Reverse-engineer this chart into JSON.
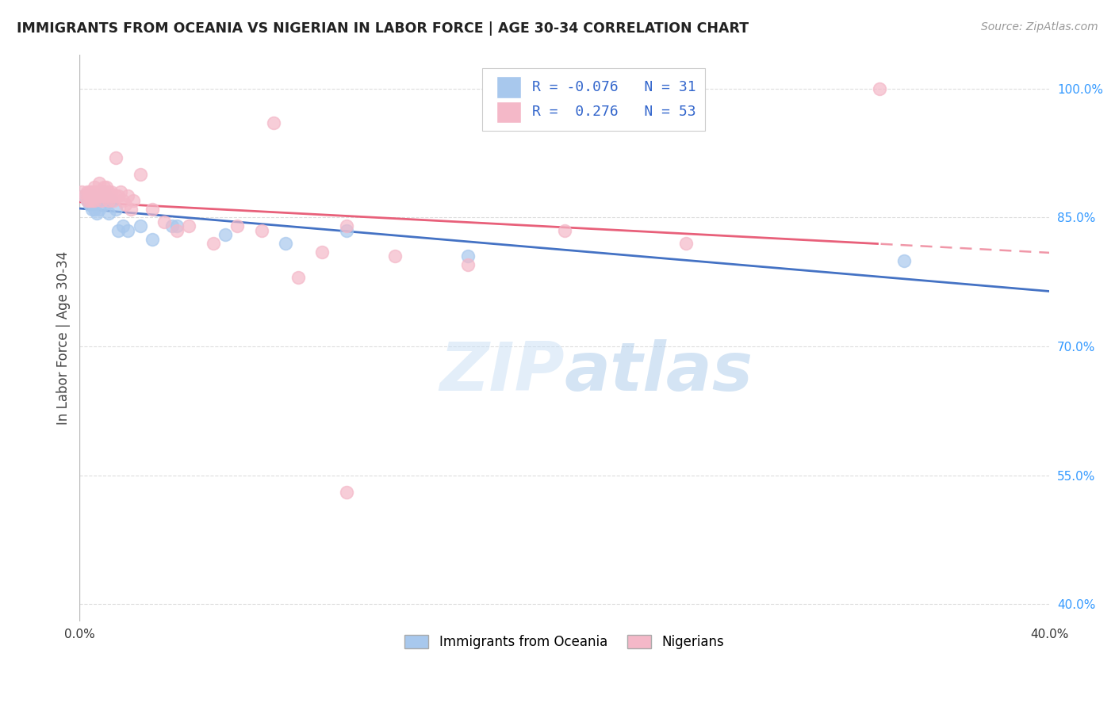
{
  "title": "IMMIGRANTS FROM OCEANIA VS NIGERIAN IN LABOR FORCE | AGE 30-34 CORRELATION CHART",
  "source": "Source: ZipAtlas.com",
  "ylabel": "In Labor Force | Age 30-34",
  "xlim": [
    0.0,
    0.4
  ],
  "ylim": [
    0.38,
    1.04
  ],
  "xticks": [
    0.0,
    0.05,
    0.1,
    0.15,
    0.2,
    0.25,
    0.3,
    0.35,
    0.4
  ],
  "xticklabels": [
    "0.0%",
    "",
    "",
    "",
    "",
    "",
    "",
    "",
    "40.0%"
  ],
  "yticks_right": [
    0.4,
    0.55,
    0.7,
    0.85,
    1.0
  ],
  "yticklabels_right": [
    "40.0%",
    "55.0%",
    "70.0%",
    "85.0%",
    "100.0%"
  ],
  "legend_blue_label": "Immigrants from Oceania",
  "legend_pink_label": "Nigerians",
  "R_blue": -0.076,
  "N_blue": 31,
  "R_pink": 0.276,
  "N_pink": 53,
  "blue_color": "#a8c8ed",
  "pink_color": "#f4b8c8",
  "blue_line_color": "#4472c4",
  "pink_line_color": "#e8607a",
  "blue_scatter_x": [
    0.002,
    0.003,
    0.004,
    0.004,
    0.005,
    0.005,
    0.006,
    0.006,
    0.006,
    0.007,
    0.007,
    0.008,
    0.009,
    0.01,
    0.01,
    0.011,
    0.012,
    0.013,
    0.015,
    0.016,
    0.018,
    0.02,
    0.025,
    0.03,
    0.038,
    0.04,
    0.06,
    0.085,
    0.11,
    0.16,
    0.34
  ],
  "blue_scatter_y": [
    0.875,
    0.87,
    0.865,
    0.87,
    0.875,
    0.86,
    0.87,
    0.865,
    0.86,
    0.87,
    0.855,
    0.86,
    0.875,
    0.88,
    0.865,
    0.87,
    0.855,
    0.87,
    0.86,
    0.835,
    0.84,
    0.835,
    0.84,
    0.825,
    0.84,
    0.84,
    0.83,
    0.82,
    0.835,
    0.805,
    0.8
  ],
  "pink_scatter_x": [
    0.001,
    0.002,
    0.003,
    0.003,
    0.004,
    0.004,
    0.004,
    0.005,
    0.005,
    0.005,
    0.006,
    0.006,
    0.006,
    0.007,
    0.007,
    0.008,
    0.008,
    0.008,
    0.009,
    0.009,
    0.01,
    0.01,
    0.011,
    0.011,
    0.012,
    0.012,
    0.013,
    0.013,
    0.014,
    0.015,
    0.015,
    0.016,
    0.017,
    0.018,
    0.019,
    0.02,
    0.021,
    0.022,
    0.025,
    0.03,
    0.035,
    0.04,
    0.055,
    0.065,
    0.075,
    0.09,
    0.1,
    0.11,
    0.13,
    0.16,
    0.2,
    0.25,
    0.33
  ],
  "pink_scatter_y": [
    0.88,
    0.875,
    0.87,
    0.88,
    0.875,
    0.88,
    0.87,
    0.88,
    0.875,
    0.87,
    0.885,
    0.875,
    0.87,
    0.88,
    0.875,
    0.89,
    0.88,
    0.875,
    0.875,
    0.87,
    0.885,
    0.88,
    0.875,
    0.885,
    0.88,
    0.87,
    0.875,
    0.88,
    0.87,
    0.875,
    0.92,
    0.875,
    0.88,
    0.87,
    0.865,
    0.875,
    0.86,
    0.87,
    0.9,
    0.86,
    0.845,
    0.835,
    0.82,
    0.84,
    0.835,
    0.78,
    0.81,
    0.84,
    0.805,
    0.795,
    0.835,
    0.82,
    1.0
  ],
  "pink_outlier_x": [
    0.08
  ],
  "pink_outlier_y": [
    0.96
  ],
  "pink_low1_x": [
    0.045
  ],
  "pink_low1_y": [
    0.84
  ],
  "pink_low2_x": [
    0.11
  ],
  "pink_low2_y": [
    0.53
  ],
  "watermark_zip": "ZIP",
  "watermark_atlas": "atlas",
  "background_color": "#ffffff",
  "grid_color": "#dddddd"
}
